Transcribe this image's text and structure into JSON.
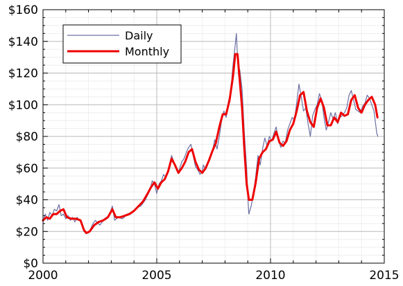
{
  "chart_data": {
    "type": "line",
    "title": "",
    "xlabel": "",
    "ylabel": "",
    "xlim": [
      2000,
      2015
    ],
    "ylim": [
      0,
      160
    ],
    "grid": true,
    "legend_position": "top-left",
    "x_ticks": [
      {
        "value": 2000,
        "label": "2000"
      },
      {
        "value": 2005,
        "label": "2005"
      },
      {
        "value": 2010,
        "label": "2010"
      },
      {
        "value": 2015,
        "label": "2015"
      }
    ],
    "y_ticks": [
      {
        "value": 0,
        "label": "$0"
      },
      {
        "value": 20,
        "label": "$20"
      },
      {
        "value": 40,
        "label": "$40"
      },
      {
        "value": 60,
        "label": "$60"
      },
      {
        "value": 80,
        "label": "$80"
      },
      {
        "value": 100,
        "label": "$100"
      },
      {
        "value": 120,
        "label": "$120"
      },
      {
        "value": 140,
        "label": "$140"
      },
      {
        "value": 160,
        "label": "$160"
      }
    ],
    "series": [
      {
        "name": "Daily",
        "color": "#6b6fa3",
        "line_width": 1.2,
        "x": [
          2000.0,
          2000.1,
          2000.2,
          2000.3,
          2000.4,
          2000.5,
          2000.6,
          2000.7,
          2000.8,
          2000.9,
          2001.0,
          2001.1,
          2001.2,
          2001.3,
          2001.4,
          2001.5,
          2001.6,
          2001.7,
          2001.8,
          2001.9,
          2002.0,
          2002.1,
          2002.2,
          2002.3,
          2002.5,
          2002.7,
          2002.9,
          2003.05,
          2003.15,
          2003.3,
          2003.5,
          2003.7,
          2003.9,
          2004.1,
          2004.3,
          2004.5,
          2004.6,
          2004.7,
          2004.8,
          2004.9,
          2005.0,
          2005.1,
          2005.2,
          2005.3,
          2005.4,
          2005.5,
          2005.6,
          2005.65,
          2005.75,
          2005.85,
          2005.95,
          2006.1,
          2006.2,
          2006.3,
          2006.4,
          2006.5,
          2006.6,
          2006.7,
          2006.8,
          2006.9,
          2007.0,
          2007.05,
          2007.15,
          2007.3,
          2007.45,
          2007.55,
          2007.65,
          2007.75,
          2007.85,
          2007.95,
          2008.05,
          2008.15,
          2008.25,
          2008.35,
          2008.45,
          2008.5,
          2008.55,
          2008.6,
          2008.65,
          2008.75,
          2008.85,
          2008.95,
          2009.0,
          2009.05,
          2009.15,
          2009.25,
          2009.35,
          2009.45,
          2009.55,
          2009.65,
          2009.75,
          2009.85,
          2009.95,
          2010.05,
          2010.15,
          2010.25,
          2010.35,
          2010.45,
          2010.55,
          2010.65,
          2010.75,
          2010.85,
          2010.95,
          2011.05,
          2011.15,
          2011.25,
          2011.35,
          2011.45,
          2011.55,
          2011.65,
          2011.75,
          2011.85,
          2011.95,
          2012.05,
          2012.15,
          2012.25,
          2012.35,
          2012.45,
          2012.55,
          2012.65,
          2012.75,
          2012.85,
          2012.95,
          2013.05,
          2013.15,
          2013.25,
          2013.35,
          2013.45,
          2013.55,
          2013.65,
          2013.75,
          2013.85,
          2013.95,
          2014.05,
          2014.15,
          2014.25,
          2014.35,
          2014.45,
          2014.55,
          2014.62,
          2014.67,
          2014.72
        ],
        "y": [
          26,
          31,
          27,
          32,
          30,
          34,
          33,
          37,
          30,
          31,
          28,
          30,
          27,
          29,
          26,
          29,
          27,
          26,
          20,
          19,
          19,
          22,
          25,
          27,
          24,
          28,
          30,
          36,
          27,
          29,
          28,
          31,
          32,
          35,
          36,
          40,
          43,
          46,
          52,
          50,
          44,
          50,
          52,
          56,
          54,
          58,
          64,
          68,
          64,
          60,
          57,
          64,
          66,
          70,
          73,
          75,
          68,
          61,
          59,
          56,
          58,
          62,
          59,
          66,
          71,
          78,
          72,
          80,
          90,
          96,
          92,
          102,
          108,
          125,
          138,
          145,
          130,
          118,
          122,
          110,
          82,
          60,
          42,
          31,
          36,
          44,
          55,
          68,
          62,
          72,
          79,
          74,
          80,
          77,
          82,
          86,
          78,
          73,
          77,
          76,
          84,
          88,
          92,
          90,
          101,
          113,
          105,
          96,
          98,
          88,
          80,
          93,
          97,
          100,
          107,
          103,
          92,
          84,
          89,
          95,
          91,
          95,
          88,
          92,
          93,
          95,
          98,
          106,
          109,
          103,
          97,
          96,
          95,
          99,
          101,
          106,
          104,
          100,
          96,
          88,
          82,
          80
        ]
      },
      {
        "name": "Monthly",
        "color": "#ee0000",
        "line_width": 3,
        "x": [
          2000.0,
          2000.15,
          2000.3,
          2000.45,
          2000.6,
          2000.75,
          2000.9,
          2001.05,
          2001.25,
          2001.45,
          2001.65,
          2001.8,
          2001.9,
          2002.05,
          2002.25,
          2002.45,
          2002.65,
          2002.85,
          2003.05,
          2003.2,
          2003.4,
          2003.6,
          2003.8,
          2004.0,
          2004.2,
          2004.4,
          2004.6,
          2004.75,
          2004.9,
          2005.05,
          2005.2,
          2005.35,
          2005.5,
          2005.65,
          2005.8,
          2005.95,
          2006.1,
          2006.25,
          2006.4,
          2006.55,
          2006.7,
          2006.85,
          2007.0,
          2007.15,
          2007.3,
          2007.45,
          2007.6,
          2007.75,
          2007.9,
          2008.05,
          2008.2,
          2008.35,
          2008.45,
          2008.55,
          2008.65,
          2008.75,
          2008.85,
          2008.95,
          2009.05,
          2009.2,
          2009.35,
          2009.5,
          2009.65,
          2009.8,
          2009.95,
          2010.1,
          2010.25,
          2010.4,
          2010.55,
          2010.7,
          2010.85,
          2011.0,
          2011.15,
          2011.3,
          2011.45,
          2011.6,
          2011.75,
          2011.9,
          2012.05,
          2012.2,
          2012.35,
          2012.5,
          2012.65,
          2012.8,
          2012.95,
          2013.1,
          2013.25,
          2013.4,
          2013.55,
          2013.7,
          2013.85,
          2014.0,
          2014.15,
          2014.3,
          2014.45,
          2014.6,
          2014.7
        ],
        "y": [
          27,
          29,
          28,
          31,
          31,
          33,
          34,
          29,
          28,
          28,
          27,
          21,
          19,
          20,
          24,
          26,
          27,
          29,
          34,
          29,
          29,
          30,
          31,
          33,
          36,
          39,
          44,
          48,
          51,
          47,
          51,
          53,
          58,
          66,
          62,
          57,
          60,
          64,
          70,
          72,
          64,
          59,
          57,
          60,
          65,
          71,
          76,
          86,
          94,
          94,
          103,
          118,
          132,
          132,
          115,
          98,
          72,
          50,
          40,
          40,
          51,
          66,
          70,
          72,
          77,
          78,
          83,
          76,
          74,
          77,
          84,
          88,
          96,
          106,
          108,
          96,
          89,
          86,
          98,
          104,
          98,
          87,
          87,
          92,
          89,
          95,
          93,
          94,
          103,
          106,
          98,
          95,
          100,
          103,
          105,
          100,
          92
        ]
      }
    ]
  }
}
